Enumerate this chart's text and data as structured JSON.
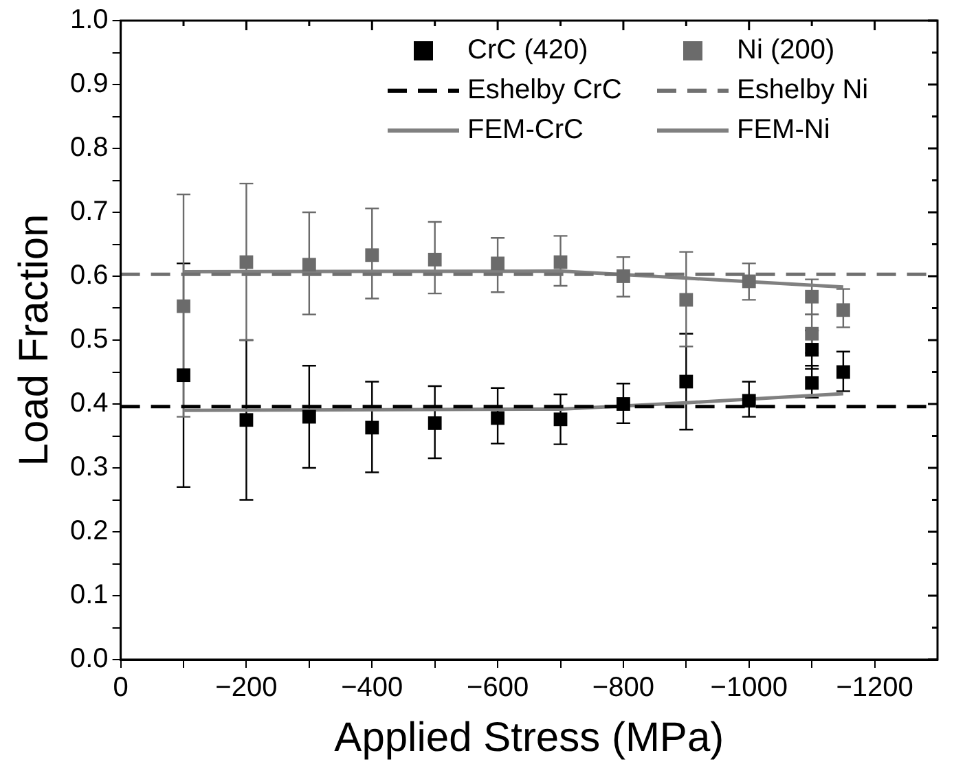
{
  "chart_data": {
    "type": "scatter",
    "xlabel": "Applied Stress (MPa)",
    "ylabel": "Load Fraction",
    "xlim": [
      0,
      -1300
    ],
    "xticks": [
      0,
      {
        "value": -100,
        "label": null
      },
      {
        "value": -200,
        "label": "−200"
      },
      {
        "value": -300,
        "label": null
      },
      {
        "value": -400,
        "label": "−400"
      },
      {
        "value": -500,
        "label": null
      },
      {
        "value": -600,
        "label": "−600"
      },
      {
        "value": -700,
        "label": null
      },
      {
        "value": -800,
        "label": "−800"
      },
      {
        "value": -900,
        "label": null
      },
      {
        "value": -1000,
        "label": "−1000"
      },
      {
        "value": -1100,
        "label": null
      },
      {
        "value": -1200,
        "label": "−1200"
      }
    ],
    "ylim": [
      0,
      1
    ],
    "yticks": [
      {
        "value": 0,
        "label": "0.0"
      },
      {
        "value": 0.05,
        "label": null
      },
      0.1,
      {
        "value": 0.15,
        "label": null
      },
      0.2,
      {
        "value": 0.25,
        "label": null
      },
      0.3,
      {
        "value": 0.35,
        "label": null
      },
      0.4,
      {
        "value": 0.45,
        "label": null
      },
      0.5,
      {
        "value": 0.55,
        "label": null
      },
      0.6,
      {
        "value": 0.65,
        "label": null
      },
      0.7,
      {
        "value": 0.75,
        "label": null
      },
      0.8,
      {
        "value": 0.85,
        "label": null
      },
      0.9,
      {
        "value": 0.95,
        "label": null
      },
      {
        "value": 1,
        "label": "1.0"
      }
    ],
    "grid": false,
    "legend": "top right",
    "marker": "square",
    "series": [
      {
        "name": "CrC (420)",
        "color": "#000000",
        "x": [
          -100,
          -200,
          -300,
          -400,
          -500,
          -600,
          -700,
          -800,
          -900,
          -1000,
          -1100,
          -1100,
          -1150
        ],
        "values": [
          0.445,
          0.375,
          0.38,
          0.363,
          0.37,
          0.378,
          0.376,
          0.4,
          0.435,
          0.405,
          0.485,
          0.433,
          0.45
        ],
        "errors": [
          [
            0.27,
            0.62
          ],
          [
            0.25,
            0.5
          ],
          [
            0.3,
            0.46
          ],
          [
            0.293,
            0.435
          ],
          [
            0.315,
            0.428
          ],
          [
            0.338,
            0.425
          ],
          [
            0.337,
            0.415
          ],
          [
            0.37,
            0.432
          ],
          [
            0.36,
            0.51
          ],
          [
            0.38,
            0.435
          ],
          [
            0.455,
            0.515
          ],
          [
            0.41,
            0.46
          ],
          [
            0.42,
            0.482
          ]
        ]
      },
      {
        "name": "Ni (200)",
        "color": "#6b6b6b",
        "x": [
          -100,
          -200,
          -300,
          -400,
          -500,
          -600,
          -700,
          -800,
          -900,
          -1000,
          -1100,
          -1100,
          -1150
        ],
        "values": [
          0.553,
          0.622,
          0.618,
          0.633,
          0.626,
          0.62,
          0.622,
          0.6,
          0.563,
          0.592,
          0.568,
          0.51,
          0.547
        ],
        "errors": [
          [
            0.38,
            0.728
          ],
          [
            0.5,
            0.745
          ],
          [
            0.54,
            0.7
          ],
          [
            0.565,
            0.706
          ],
          [
            0.573,
            0.685
          ],
          [
            0.575,
            0.66
          ],
          [
            0.585,
            0.663
          ],
          [
            0.568,
            0.63
          ],
          [
            0.49,
            0.638
          ],
          [
            0.563,
            0.62
          ],
          [
            0.54,
            0.595
          ],
          [
            0.48,
            0.54
          ],
          [
            0.52,
            0.58
          ]
        ]
      },
      {
        "name": "Eshelby CrC",
        "type": "line",
        "line_style": "dashed",
        "marker": "none",
        "color": "#000000",
        "x": [
          0,
          -1300
        ],
        "values": [
          0.396,
          0.396
        ]
      },
      {
        "name": "Eshelby Ni",
        "type": "line",
        "line_style": "dashed",
        "marker": "none",
        "color": "#707070",
        "x": [
          0,
          -1300
        ],
        "values": [
          0.603,
          0.603
        ]
      },
      {
        "name": "FEM-CrC",
        "type": "line",
        "line_style": "solid",
        "marker": "none",
        "color": "#808080",
        "x": [
          -100,
          -700,
          -900,
          -1150
        ],
        "values": [
          0.39,
          0.392,
          0.402,
          0.416
        ]
      },
      {
        "name": "FEM-Ni",
        "type": "line",
        "line_style": "solid",
        "marker": "none",
        "color": "#808080",
        "x": [
          -100,
          -700,
          -900,
          -1150
        ],
        "values": [
          0.607,
          0.608,
          0.597,
          0.583
        ]
      }
    ]
  }
}
